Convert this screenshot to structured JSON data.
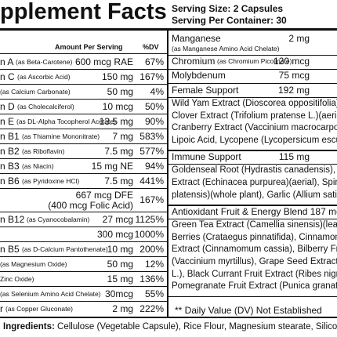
{
  "header": {
    "title": "pplement Facts",
    "serving_size": "Serving Size: 2 Capsules",
    "servings_per_container": "Serving Per Container: 30"
  },
  "left": {
    "col_amount": "Amount Per Serving",
    "col_dv": "%DV",
    "rows": [
      {
        "name": "n A",
        "source": "(as Beta-Carotene)",
        "amount": [
          "600 mcg RAE"
        ],
        "dv": "67%"
      },
      {
        "name": "n C",
        "source": "(as Ascorbic Acid)",
        "amount": [
          "150 mg"
        ],
        "dv": "167%"
      },
      {
        "source": "(as Calcium Carbonate)",
        "amount": [
          "50 mg"
        ],
        "dv": "4%"
      },
      {
        "name": "n D",
        "source": "(as Cholecalciferol)",
        "amount": [
          "10 mcg"
        ],
        "dv": "50%"
      },
      {
        "name": "n E",
        "source": "(as DL-Alpha Tocopherol Acetate)",
        "amount": [
          "13.5 mg"
        ],
        "dv": "90%"
      },
      {
        "name": "n B1",
        "source": "(as Thiamine Mononitrate)",
        "amount": [
          "7 mg"
        ],
        "dv": "583%"
      },
      {
        "name": "n B2",
        "source": "(as Riboflavin)",
        "amount": [
          "7.5 mg"
        ],
        "dv": "577%"
      },
      {
        "name": "n B3",
        "source": "(as Niacin)",
        "amount": [
          "15 mg NE"
        ],
        "dv": "94%"
      },
      {
        "name": "n B6",
        "source": "(as Pyridoxine HCl)",
        "amount": [
          "7.5 mg"
        ],
        "dv": "441%"
      },
      {
        "amount": [
          "667 mcg DFE",
          "(400 mcg Folic Acid)"
        ],
        "dv": "167%"
      },
      {
        "name": "n B12",
        "source": "(as Cyanocobalamin)",
        "amount": [
          "27 mcg"
        ],
        "dv": "1125%"
      },
      {
        "amount": [
          "300 mcg"
        ],
        "dv": "1000%"
      },
      {
        "name": "n B5",
        "source": "(as D-Calcium Pantothenate)",
        "amount": [
          "10 mg"
        ],
        "dv": "200%"
      },
      {
        "source": "(as Magnesium Oxide)",
        "amount": [
          "50 mg"
        ],
        "dv": "12%"
      },
      {
        "source": "Zinc Oxide)",
        "amount": [
          "15 mg"
        ],
        "dv": "136%"
      },
      {
        "source": "(as Selenium Amino Acid Chelate)",
        "amount": [
          "30mcg"
        ],
        "dv": "55%"
      },
      {
        "name": "r",
        "source": "(as Copper Gluconate)",
        "amount": [
          "2 mg"
        ],
        "dv": "222%"
      }
    ]
  },
  "right": {
    "rows": [
      {
        "name": "Manganese",
        "amount": "2 mg",
        "source": "(as Manganese Amino Acid Chelate)"
      },
      {
        "name": "Chromium",
        "source": "(as Chromium Picolinate)",
        "amount": "120 mcg"
      },
      {
        "name": "Molybdenum",
        "amount": "75 mcg"
      }
    ],
    "blends": [
      {
        "name": "Female Support",
        "amount": "192 mg",
        "lines": [
          "Wild Yam Extract (Dioscorea oppositifolia)(root), F",
          "Clover Extract (Trifolium pratense L.)(aerial), Lute",
          "Cranberry Extract (Vaccinium macrocarpon)(fruit),",
          "Lipoic Acid, Lycopene (Lycopersicum esculentum"
        ]
      },
      {
        "name": "Immune Support",
        "amount": "115 mg",
        "lines": [
          "Goldenseal Root (Hydrastis canadensis), Echina",
          "Extract (Echinacea purpurea)(aerial), Spirulina (Arth",
          "platensis)(whole plant), Garlic (Allium sativum)(bulb)"
        ]
      },
      {
        "name": "Antioxidant Fruit & Energy Blend 187 mg",
        "lines": [
          "Green Tea Extract (Camellia sinensis)(leaf), Haw",
          "Berries (Crataegus pinnatifida), Cinnamon Bark E",
          "Extract (Cinnamomum cassia), Bilberry Fruit Extract",
          "(Vaccinium myrtillus), Grape Seed Extract (Vitis vi",
          "L.), Black Currant Fruit Extract (Ribes nigrum),",
          "Pomegranate Fruit Extract (Punica granatum)"
        ]
      }
    ]
  },
  "footnote": "** Daily Value (DV) Not Established",
  "ingredients": {
    "label": "Ingredients:",
    "text": "Cellulose (Vegetable Capsule), Rice Flour, Magnesium stearate, Silicon"
  }
}
